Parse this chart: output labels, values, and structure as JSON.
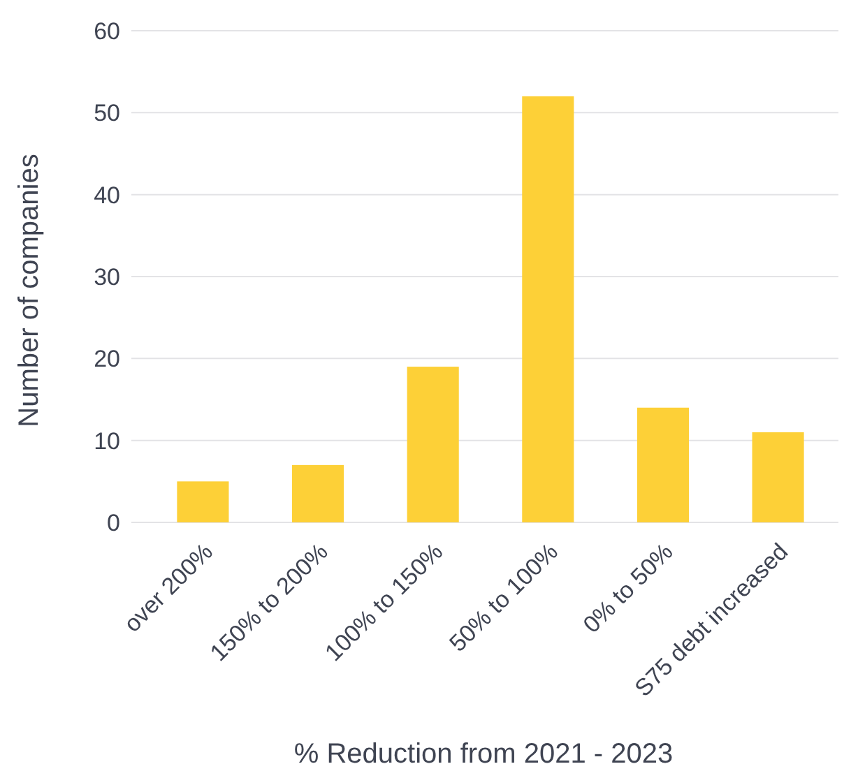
{
  "chart_data": {
    "type": "bar",
    "xlabel": "% Reduction from 2021 - 2023",
    "ylabel": "Number of companies",
    "categories": [
      "over 200%",
      "150% to 200%",
      "100% to 150%",
      "50% to 100%",
      "0% to 50%",
      "S75 debt increased"
    ],
    "values": [
      5,
      7,
      19,
      52,
      14,
      11
    ],
    "color": "#fdd037",
    "ylim": [
      0,
      60
    ],
    "yticks": [
      0,
      10,
      20,
      30,
      40,
      50,
      60
    ],
    "grid": "y"
  }
}
